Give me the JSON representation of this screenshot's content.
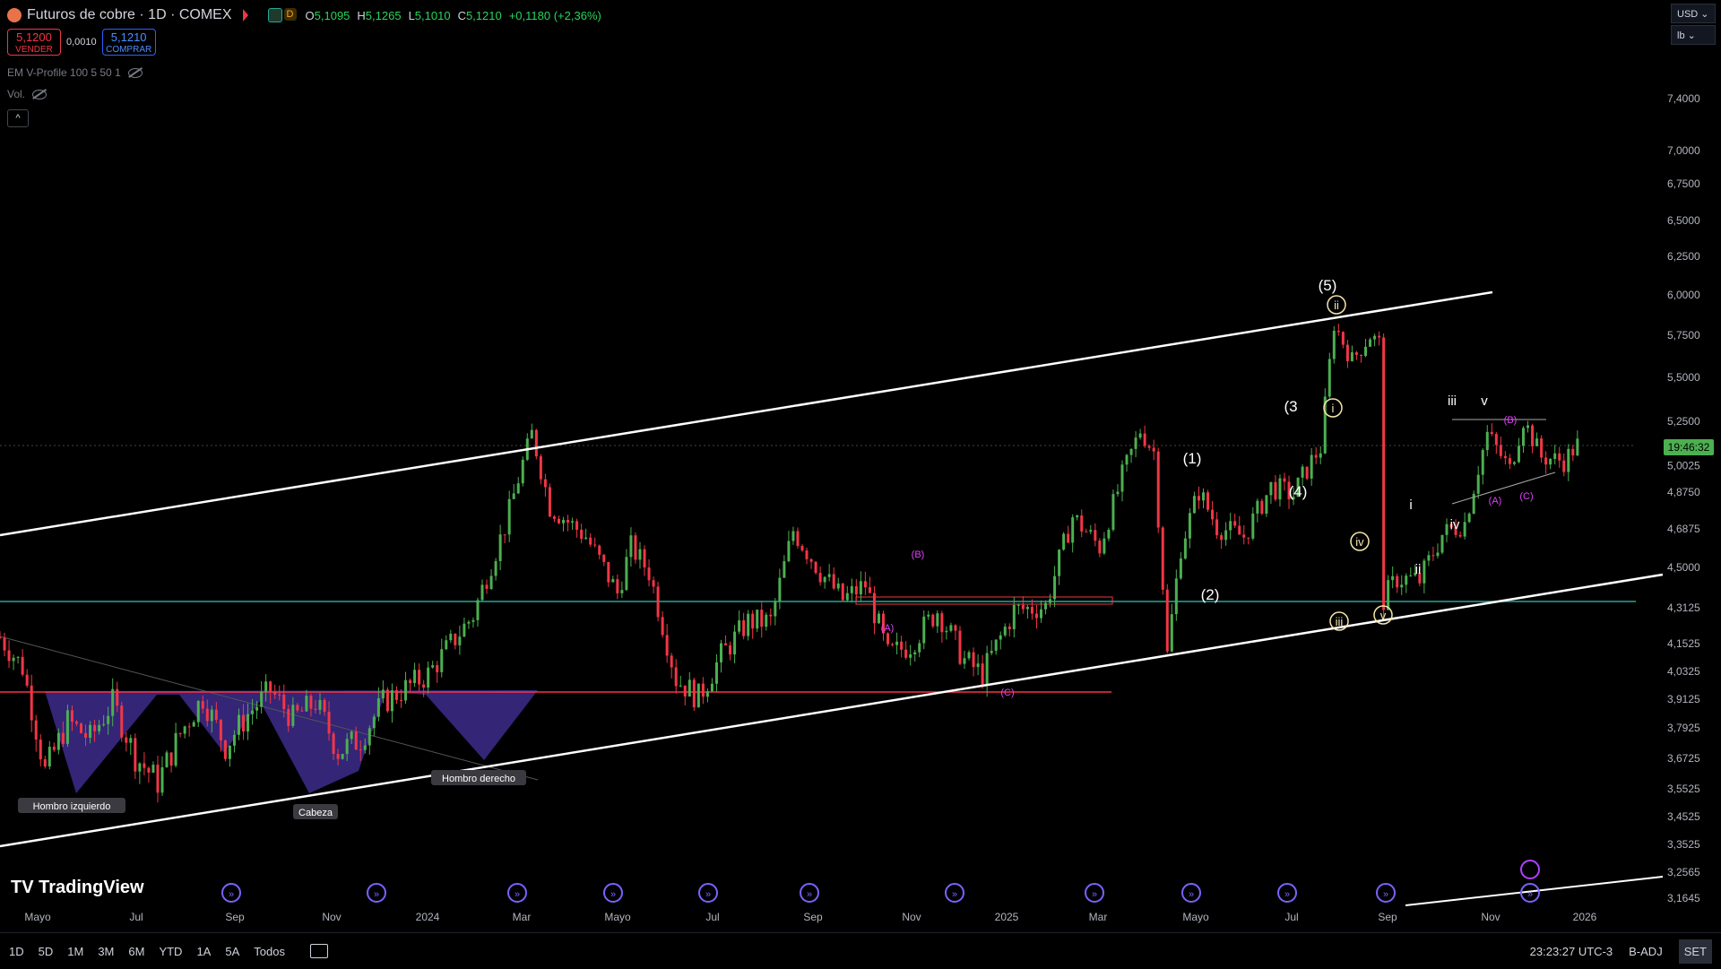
{
  "header": {
    "symbol": "Futuros de cobre · 1D · COMEX",
    "market_d": "D",
    "open_lbl": "O",
    "open": "5,1095",
    "high_lbl": "H",
    "high": "5,1265",
    "low_lbl": "L",
    "low": "5,1010",
    "close_lbl": "C",
    "close": "5,1210",
    "change": "+0,1180 (+2,36%)"
  },
  "trade": {
    "sell_price": "5,1200",
    "sell_label": "VENDER",
    "spread": "0,0010",
    "buy_price": "5,1210",
    "buy_label": "COMPRAR"
  },
  "indicators": {
    "vprofile": "EM V-Profile 100 5 50 1",
    "volume": "Vol."
  },
  "currency": {
    "currency": "USD",
    "unit": "lb"
  },
  "bottom": {
    "ranges": [
      "1D",
      "5D",
      "1M",
      "3M",
      "6M",
      "YTD",
      "1A",
      "5A",
      "Todos"
    ],
    "time": "23:23:27 UTC-3",
    "adj": "B-ADJ",
    "set": "SET"
  },
  "colors": {
    "up": "#4caf50",
    "down": "#f23645",
    "green_line": "#26a69a",
    "red_line": "#f23645",
    "pattern_fill": "#3d2b8c",
    "white_line": "#ffffff",
    "wave_pink": "#e040fb",
    "price_tag": "#4caf50"
  },
  "chart_data": {
    "type": "candlestick",
    "title": "Futuros de cobre · 1D · COMEX",
    "price_scale": [
      "7,4000",
      "7,0000",
      "6,7500",
      "6,5000",
      "6,2500",
      "6,0000",
      "5,7500",
      "5,5000",
      "5,2500",
      "5,0025",
      "4,8750",
      "4,6875",
      "4,5000",
      "4,3125",
      "4,1525",
      "4,0325",
      "3,9125",
      "3,7925",
      "3,6725",
      "3,5525",
      "3,4525",
      "3,3525",
      "3,2565",
      "3,1645"
    ],
    "x_ticks": [
      "Mayo",
      "Jul",
      "Sep",
      "Nov",
      "2024",
      "Mar",
      "Mayo",
      "Jul",
      "Sep",
      "Nov",
      "2025",
      "Mar",
      "Mayo",
      "Jul",
      "Sep",
      "Nov",
      "2026"
    ],
    "current_price": "5,1210",
    "countdown": "19:46:32",
    "price_path": [
      [
        0,
        4.18
      ],
      [
        5,
        4.05
      ],
      [
        10,
        3.62
      ],
      [
        15,
        3.82
      ],
      [
        20,
        3.75
      ],
      [
        25,
        3.9
      ],
      [
        30,
        3.68
      ],
      [
        35,
        3.58
      ],
      [
        40,
        3.77
      ],
      [
        45,
        3.92
      ],
      [
        50,
        3.72
      ],
      [
        55,
        3.85
      ],
      [
        60,
        3.95
      ],
      [
        65,
        3.83
      ],
      [
        70,
        3.9
      ],
      [
        75,
        3.7
      ],
      [
        80,
        3.75
      ],
      [
        85,
        3.9
      ],
      [
        95,
        4.02
      ],
      [
        105,
        4.28
      ],
      [
        112,
        4.7
      ],
      [
        118,
        5.18
      ],
      [
        122,
        4.8
      ],
      [
        130,
        4.65
      ],
      [
        137,
        4.38
      ],
      [
        140,
        4.6
      ],
      [
        144,
        4.48
      ],
      [
        150,
        4.0
      ],
      [
        155,
        3.92
      ],
      [
        160,
        4.1
      ],
      [
        166,
        4.25
      ],
      [
        171,
        4.25
      ],
      [
        176,
        4.68
      ],
      [
        182,
        4.48
      ],
      [
        187,
        4.35
      ],
      [
        192,
        4.42
      ],
      [
        197,
        4.1
      ],
      [
        202,
        4.15
      ],
      [
        208,
        4.3
      ],
      [
        214,
        4.08
      ],
      [
        218,
        4.02
      ],
      [
        225,
        4.3
      ],
      [
        232,
        4.32
      ],
      [
        238,
        4.75
      ],
      [
        244,
        4.6
      ],
      [
        249,
        4.95
      ],
      [
        253,
        5.2
      ],
      [
        256,
        5.08
      ],
      [
        259,
        4.1
      ],
      [
        262,
        4.6
      ],
      [
        266,
        4.88
      ],
      [
        270,
        4.7
      ],
      [
        276,
        4.65
      ],
      [
        282,
        4.9
      ],
      [
        287,
        4.86
      ],
      [
        291,
        5.03
      ],
      [
        293,
        5.1
      ],
      [
        296,
        5.82
      ],
      [
        300,
        5.6
      ],
      [
        304,
        5.75
      ],
      [
        306,
        5.7
      ],
      [
        307,
        4.35
      ],
      [
        310,
        4.45
      ],
      [
        315,
        4.44
      ],
      [
        320,
        4.66
      ],
      [
        325,
        4.72
      ],
      [
        330,
        5.18
      ],
      [
        335,
        4.98
      ],
      [
        338,
        5.26
      ],
      [
        342,
        5.05
      ],
      [
        347,
        5.03
      ],
      [
        350,
        5.12
      ]
    ],
    "annotations": {
      "head_shoulders": [
        "Hombro izquierdo",
        "Cabeza",
        "Hombro derecho"
      ],
      "waves_major": [
        "(1)",
        "(2)",
        "(3",
        "(4)",
        "(5)"
      ],
      "waves_minor": [
        "i",
        "ii",
        "iii",
        "iv",
        "v"
      ],
      "waves_circled": [
        "ii",
        "i",
        "iv",
        "iii",
        "v"
      ],
      "waves_abc": [
        "(A)",
        "(B)",
        "(C)",
        "(A)",
        "(B)",
        "(C)"
      ]
    }
  }
}
